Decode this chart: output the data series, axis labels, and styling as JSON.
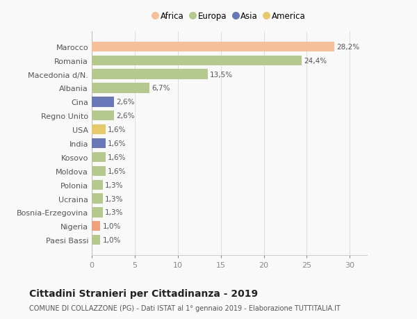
{
  "categories": [
    "Paesi Bassi",
    "Nigeria",
    "Bosnia-Erzegovina",
    "Ucraina",
    "Polonia",
    "Moldova",
    "Kosovo",
    "India",
    "USA",
    "Regno Unito",
    "Cina",
    "Albania",
    "Macedonia d/N.",
    "Romania",
    "Marocco"
  ],
  "values": [
    1.0,
    1.0,
    1.3,
    1.3,
    1.3,
    1.6,
    1.6,
    1.6,
    1.6,
    2.6,
    2.6,
    6.7,
    13.5,
    24.4,
    28.2
  ],
  "colors": [
    "#b5c98e",
    "#f0a07a",
    "#b5c98e",
    "#b5c98e",
    "#b5c98e",
    "#b5c98e",
    "#b5c98e",
    "#6878b8",
    "#e8c96a",
    "#b5c98e",
    "#6878b8",
    "#b5c98e",
    "#b5c98e",
    "#b5c98e",
    "#f5c09a"
  ],
  "labels": [
    "1,0%",
    "1,0%",
    "1,3%",
    "1,3%",
    "1,3%",
    "1,6%",
    "1,6%",
    "1,6%",
    "1,6%",
    "2,6%",
    "2,6%",
    "6,7%",
    "13,5%",
    "24,4%",
    "28,2%"
  ],
  "legend_labels": [
    "Africa",
    "Europa",
    "Asia",
    "America"
  ],
  "legend_colors": [
    "#f5c09a",
    "#b5c98e",
    "#6878b8",
    "#e8c96a"
  ],
  "title": "Cittadini Stranieri per Cittadinanza - 2019",
  "subtitle": "COMUNE DI COLLAZZONE (PG) - Dati ISTAT al 1° gennaio 2019 - Elaborazione TUTTITALIA.IT",
  "xlim": [
    0,
    32
  ],
  "xticks": [
    0,
    5,
    10,
    15,
    20,
    25,
    30
  ],
  "bg_color": "#f9f9f9",
  "bar_height": 0.72,
  "label_fontsize": 7.5,
  "ytick_fontsize": 8,
  "xtick_fontsize": 8,
  "title_fontsize": 10,
  "subtitle_fontsize": 7
}
